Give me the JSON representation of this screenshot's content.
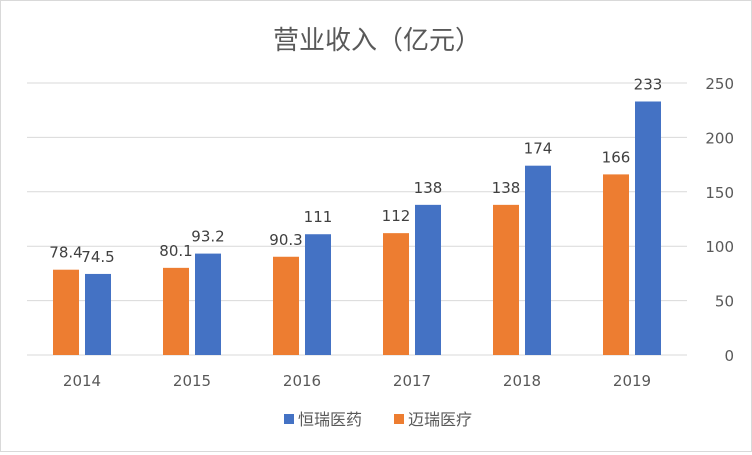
{
  "chart_data": {
    "type": "bar",
    "title": "营业收入（亿元）",
    "categories": [
      "2014",
      "2015",
      "2016",
      "2017",
      "2018",
      "2019"
    ],
    "series": [
      {
        "name": "迈瑞医疗",
        "color": "#ED7D31",
        "values": [
          78.4,
          80.1,
          90.3,
          112,
          138,
          166
        ]
      },
      {
        "name": "恒瑞医药",
        "color": "#4472C4",
        "values": [
          74.5,
          93.2,
          111,
          138,
          174,
          233
        ]
      }
    ],
    "legend_order": [
      "恒瑞医药",
      "迈瑞医疗"
    ],
    "y_ticks": [
      "0",
      "50",
      "100",
      "150",
      "200",
      "250"
    ],
    "ylim": [
      0,
      250
    ],
    "y_axis_side": "right",
    "grid": true,
    "legend_position": "bottom",
    "data_labels": [
      [
        "78.4",
        "80.1",
        "90.3",
        "112",
        "138",
        "166"
      ],
      [
        "74.5",
        "93.2",
        "111",
        "138",
        "174",
        "233"
      ]
    ]
  }
}
